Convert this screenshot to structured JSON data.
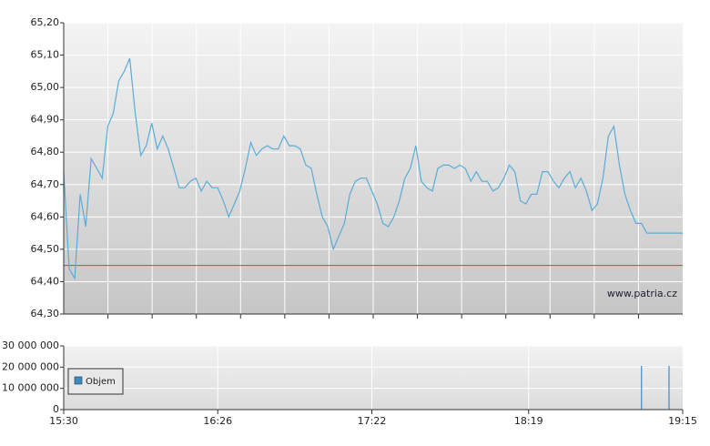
{
  "chart_data": [
    {
      "type": "line",
      "color": "#5aacd8",
      "xlim": [
        "15:30",
        "19:15"
      ],
      "ylim": [
        64.3,
        65.2
      ],
      "yticks": [
        {
          "value": 64.3,
          "label": "64,30"
        },
        {
          "value": 64.4,
          "label": "64,40"
        },
        {
          "value": 64.5,
          "label": "64,50"
        },
        {
          "value": 64.6,
          "label": "64,60"
        },
        {
          "value": 64.7,
          "label": "64,70"
        },
        {
          "value": 64.8,
          "label": "64,80"
        },
        {
          "value": 64.9,
          "label": "64,90"
        },
        {
          "value": 65.0,
          "label": "65,00"
        },
        {
          "value": 65.1,
          "label": "65,10"
        },
        {
          "value": 65.2,
          "label": "65,20"
        }
      ],
      "grid": true,
      "reference_line": 64.45,
      "reference_color": "#d04040",
      "annotation": "www.patria.cz",
      "x": [
        "15:30",
        "15:32",
        "15:34",
        "15:36",
        "15:38",
        "15:40",
        "15:42",
        "15:44",
        "15:46",
        "15:48",
        "15:50",
        "15:52",
        "15:54",
        "15:56",
        "15:58",
        "16:00",
        "16:02",
        "16:04",
        "16:06",
        "16:08",
        "16:10",
        "16:12",
        "16:14",
        "16:16",
        "16:18",
        "16:20",
        "16:22",
        "16:24",
        "16:26",
        "16:28",
        "16:30",
        "16:32",
        "16:34",
        "16:36",
        "16:38",
        "16:40",
        "16:42",
        "16:44",
        "16:46",
        "16:48",
        "16:50",
        "16:52",
        "16:54",
        "16:56",
        "16:58",
        "17:00",
        "17:02",
        "17:04",
        "17:06",
        "17:08",
        "17:10",
        "17:12",
        "17:14",
        "17:16",
        "17:18",
        "17:20",
        "17:22",
        "17:24",
        "17:26",
        "17:28",
        "17:30",
        "17:32",
        "17:34",
        "17:36",
        "17:38",
        "17:40",
        "17:42",
        "17:44",
        "17:46",
        "17:48",
        "17:50",
        "17:52",
        "17:54",
        "17:56",
        "17:58",
        "18:00",
        "18:02",
        "18:04",
        "18:06",
        "18:08",
        "18:10",
        "18:12",
        "18:14",
        "18:16",
        "18:18",
        "18:20",
        "18:22",
        "18:24",
        "18:26",
        "18:28",
        "18:30",
        "18:32",
        "18:34",
        "18:36",
        "18:38",
        "18:40",
        "18:42",
        "18:44",
        "18:46",
        "18:48",
        "18:50",
        "18:52",
        "18:54",
        "18:56",
        "18:58",
        "19:00",
        "19:02",
        "19:15"
      ],
      "values": [
        64.74,
        64.44,
        64.41,
        64.67,
        64.57,
        64.78,
        64.75,
        64.72,
        64.88,
        64.92,
        65.02,
        65.05,
        65.09,
        64.92,
        64.79,
        64.82,
        64.89,
        64.81,
        64.85,
        64.81,
        64.75,
        64.69,
        64.69,
        64.71,
        64.72,
        64.68,
        64.71,
        64.69,
        64.69,
        64.65,
        64.6,
        64.64,
        64.68,
        64.75,
        64.83,
        64.79,
        64.81,
        64.82,
        64.81,
        64.81,
        64.85,
        64.82,
        64.82,
        64.81,
        64.76,
        64.75,
        64.67,
        64.6,
        64.57,
        64.5,
        64.54,
        64.58,
        64.67,
        64.71,
        64.72,
        64.72,
        64.68,
        64.64,
        64.58,
        64.57,
        64.6,
        64.65,
        64.72,
        64.75,
        64.82,
        64.71,
        64.69,
        64.68,
        64.75,
        64.76,
        64.76,
        64.75,
        64.76,
        64.75,
        64.71,
        64.74,
        64.71,
        64.71,
        64.68,
        64.69,
        64.72,
        64.76,
        64.74,
        64.65,
        64.64,
        64.67,
        64.67,
        64.74,
        64.74,
        64.71,
        64.69,
        64.72,
        64.74,
        64.69,
        64.72,
        64.68,
        64.62,
        64.64,
        64.72,
        64.85,
        64.88,
        64.76,
        64.67,
        64.62,
        64.58,
        64.58,
        64.55,
        64.55
      ]
    },
    {
      "type": "bar",
      "xlim": [
        "15:30",
        "19:15"
      ],
      "xticks": [
        "15:30",
        "16:26",
        "17:22",
        "18:19",
        "19:15"
      ],
      "ylim": [
        0,
        30000000
      ],
      "yticks": [
        0,
        {
          "value": 10000000,
          "label": "10 000 000"
        },
        {
          "value": 20000000,
          "label": "20 000 000"
        },
        {
          "value": 30000000,
          "label": "30 000 000"
        }
      ],
      "grid": true,
      "series": [
        {
          "name": "Objem",
          "color": "#3a8cc8",
          "x": [
            "19:00",
            "19:10"
          ],
          "values": [
            20600000,
            20600000
          ]
        }
      ]
    }
  ]
}
